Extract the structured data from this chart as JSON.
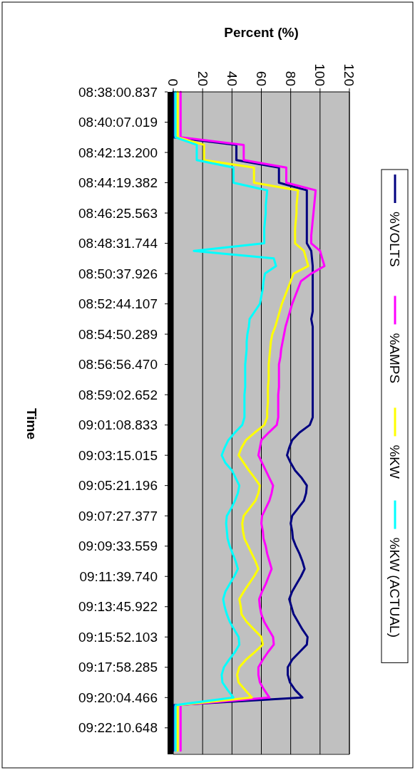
{
  "chart_data": {
    "type": "line",
    "orientation": "horizontal",
    "xlabel": "Percent (%)",
    "ylabel": "Time",
    "xlim": [
      0,
      120
    ],
    "xticks": [
      0,
      20,
      40,
      60,
      80,
      100,
      120
    ],
    "grid": "x",
    "legend": "right",
    "categories": [
      "08:38:00.837",
      null,
      null,
      null,
      "08:40:07.019",
      null,
      null,
      null,
      "08:42:13.200",
      null,
      null,
      null,
      "08:44:19.382",
      null,
      null,
      null,
      "08:46:25.563",
      null,
      null,
      null,
      "08:48:31.744",
      null,
      null,
      null,
      "08:50:37.926",
      null,
      null,
      null,
      "08:52:44.107",
      null,
      null,
      null,
      "08:54:50.289",
      null,
      null,
      null,
      "08:56:56.470",
      null,
      null,
      null,
      "08:59:02.652",
      null,
      null,
      null,
      "09:01:08.833",
      null,
      null,
      null,
      "09:03:15.015",
      null,
      null,
      null,
      "09:05:21.196",
      null,
      null,
      null,
      "09:07:27.377",
      null,
      null,
      null,
      "09:09:33.559",
      null,
      null,
      null,
      "09:11:39.740",
      null,
      null,
      null,
      "09:13:45.922",
      null,
      null,
      null,
      "09:15:52.103",
      null,
      null,
      null,
      "09:17:58.285",
      null,
      null,
      null,
      "09:20:04.466",
      null,
      null,
      null,
      "09:22:10.648",
      null,
      null,
      null
    ],
    "series": [
      {
        "name": "%VOLTS",
        "color": "#000080",
        "values": [
          0,
          0,
          0,
          0,
          0,
          0,
          0,
          43,
          43,
          43,
          72,
          72,
          72,
          91,
          91,
          91,
          91,
          91,
          91,
          91,
          91,
          94,
          94.5,
          95,
          95,
          95,
          95,
          95,
          95,
          95,
          94,
          95,
          95,
          95,
          95,
          95,
          95,
          95,
          95,
          95,
          95,
          95,
          95,
          95,
          93,
          86,
          81,
          79,
          77.5,
          80,
          83,
          87.5,
          91,
          90.5,
          89,
          85,
          81,
          80,
          81,
          81.5,
          83.5,
          86,
          88,
          89.5,
          87,
          84,
          81,
          79,
          80.5,
          82,
          85,
          88,
          91.5,
          91,
          86,
          81,
          78,
          78,
          79.5,
          83,
          88,
          0,
          0,
          0,
          0,
          0,
          0,
          0
        ]
      },
      {
        "name": "%AMPS",
        "color": "#ff00ff",
        "values": [
          5,
          5,
          5,
          5,
          5,
          5,
          5,
          48,
          48,
          48,
          77,
          77,
          77,
          97,
          96.5,
          96,
          95.5,
          95,
          94.5,
          94,
          94,
          100,
          101.5,
          103,
          94,
          87,
          85,
          83,
          81,
          79.5,
          78,
          76.5,
          75.5,
          74.5,
          73.5,
          73,
          72,
          72,
          72,
          72,
          71.5,
          71.5,
          71.5,
          71.5,
          70.5,
          65,
          60,
          59,
          58,
          60.5,
          63,
          65.5,
          68,
          67,
          65.5,
          63,
          60.5,
          60,
          61,
          61.5,
          63,
          64,
          65.5,
          67,
          65,
          63,
          60.5,
          58.5,
          59,
          60,
          62,
          65,
          68,
          68.5,
          64.5,
          61,
          58,
          58,
          59,
          62,
          65.5,
          5,
          5,
          5,
          5,
          5,
          5,
          5
        ]
      },
      {
        "name": "%KW",
        "color": "#ffff00",
        "values": [
          3,
          3,
          3,
          3,
          3,
          3,
          3,
          21,
          21,
          21,
          55,
          55,
          55,
          85,
          84.5,
          84,
          84,
          83.5,
          83,
          83,
          83,
          89,
          90.5,
          92,
          82,
          80,
          78,
          76,
          74,
          72.5,
          71,
          69.5,
          67.5,
          66.5,
          66,
          65.5,
          65,
          65,
          65,
          64.5,
          64.5,
          64.5,
          64,
          64,
          62,
          55.5,
          49.5,
          46.5,
          44.5,
          48,
          51.5,
          55.5,
          59,
          58,
          56,
          52,
          48,
          47,
          47.5,
          48.5,
          51,
          53.5,
          56,
          58,
          55,
          51.5,
          48,
          45,
          46,
          46.5,
          50,
          55,
          60,
          61,
          55.5,
          49.5,
          45,
          43.5,
          44.5,
          49,
          53.5,
          3,
          3,
          3,
          3,
          3,
          3,
          3
        ]
      },
      {
        "name": "%KW (ACTUAL)",
        "color": "#00ffff",
        "values": [
          1.5,
          1.5,
          1.5,
          1.5,
          1.5,
          1.5,
          1.5,
          16,
          16,
          16,
          41,
          41,
          41,
          64,
          63.5,
          63,
          63,
          62.5,
          62,
          62,
          62,
          14,
          68.5,
          70,
          62.5,
          61.5,
          61,
          60,
          59,
          55.5,
          52,
          51.5,
          50.5,
          50,
          50,
          49.5,
          49,
          49,
          49,
          49,
          48.5,
          48.5,
          48.5,
          48.5,
          47,
          42,
          37.5,
          35,
          33,
          35.5,
          40,
          42.5,
          45,
          44,
          42,
          39.5,
          36.5,
          36,
          36.5,
          37,
          38.5,
          40.5,
          42.5,
          44,
          41.5,
          38.5,
          35.5,
          34,
          35,
          36.5,
          38.5,
          41.5,
          44.5,
          45,
          42,
          38,
          34.5,
          33,
          33.5,
          37,
          41,
          1.5,
          1.5,
          1.5,
          1.5,
          1.5,
          1.5,
          1.5
        ]
      }
    ]
  }
}
